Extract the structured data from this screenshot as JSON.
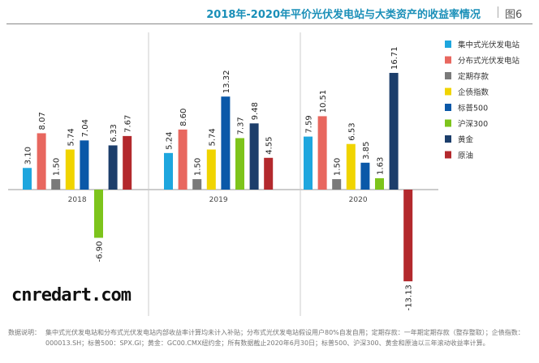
{
  "header": {
    "title": "2018年-2020年平价光伏发电站与大类资产的收益率情况",
    "figure": "图6"
  },
  "chart_data": {
    "type": "bar",
    "title": "2018年-2020年平价光伏发电站与大类资产的收益率情况",
    "categories": [
      "2018",
      "2019",
      "2020"
    ],
    "series": [
      {
        "name": "集中式光伏发电站",
        "color": "#1ea6de",
        "values": [
          3.1,
          5.24,
          7.59
        ]
      },
      {
        "name": "分布式光伏发电站",
        "color": "#e8675f",
        "values": [
          8.07,
          8.6,
          10.51
        ]
      },
      {
        "name": "定期存款",
        "color": "#7a7a7a",
        "values": [
          1.5,
          1.5,
          1.5
        ]
      },
      {
        "name": "企债指数",
        "color": "#f0d400",
        "values": [
          5.74,
          5.74,
          6.53
        ]
      },
      {
        "name": "标普500",
        "color": "#0a58a8",
        "values": [
          7.04,
          13.32,
          3.85
        ]
      },
      {
        "name": "沪深300",
        "color": "#7dc41c",
        "values": [
          -6.9,
          7.37,
          1.63
        ]
      },
      {
        "name": "黄金",
        "color": "#1c3e6b",
        "values": [
          6.33,
          9.48,
          16.71
        ]
      },
      {
        "name": "原油",
        "color": "#b3292d",
        "values": [
          7.67,
          4.55,
          -13.13
        ]
      }
    ],
    "labels": [
      [
        "3.10",
        "8.07",
        "1.50",
        "5.74",
        "7.04",
        "-6.90",
        "6.33",
        "7.67"
      ],
      [
        "5.24",
        "8.60",
        "1.50",
        "5.74",
        "13.32",
        "7.37",
        "9.48",
        "4.55"
      ],
      [
        "7.59",
        "10.51",
        "1.50",
        "6.53",
        "3.85",
        "1.63",
        "16.71",
        "-13.13"
      ]
    ],
    "xlabel": "",
    "ylabel": "",
    "legend": "right",
    "grid": false
  },
  "note": {
    "label": "数据说明：",
    "text": "集中式光伏发电站和分布式光伏发电站内部收益率计算均未计入补贴；分布式光伏发电站假设用户80%自发自用；定期存款：一年期定期存款（整存整取）；企债指数：000013.SH；标普500：SPX.GI；黄金：GC00.CMX纽约金；所有数据截止2020年6月30日；标普500、沪深300、黄金和原油以三年滚动收益率计算。"
  },
  "watermark": "cnredart.com"
}
